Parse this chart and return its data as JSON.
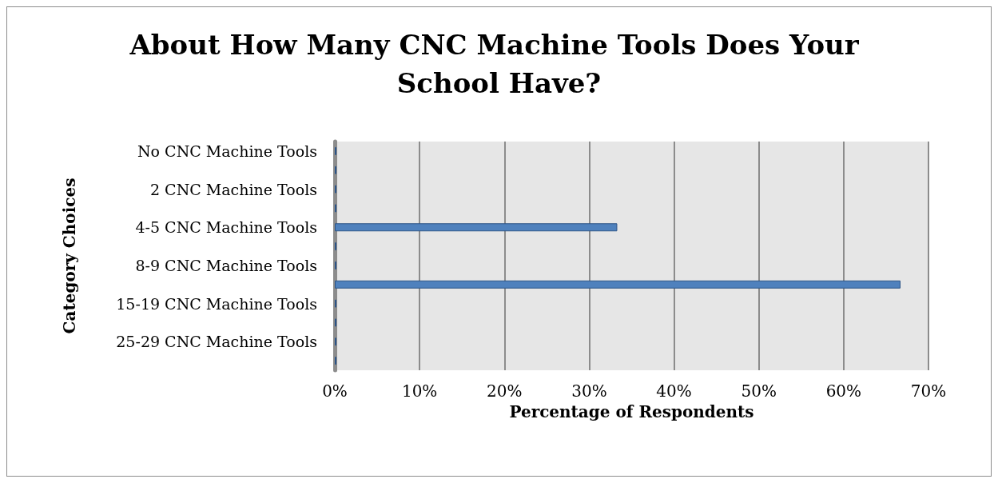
{
  "chart_data": {
    "type": "bar",
    "orientation": "horizontal",
    "title": "About How Many CNC Machine Tools Does Your School Have?",
    "xlabel": "Percentage of Respondents",
    "ylabel": "Category Choices",
    "categories": [
      "No CNC Machine Tools",
      null,
      "2 CNC Machine Tools",
      null,
      "4-5 CNC Machine Tools",
      null,
      "8-9 CNC Machine Tools",
      null,
      "15-19 CNC Machine Tools",
      null,
      "25-29 CNC Machine Tools",
      null
    ],
    "values": [
      0,
      0,
      0,
      0,
      33.3,
      0,
      0,
      66.7,
      0,
      0,
      0,
      0
    ],
    "color": "#4f81bd",
    "xlim": [
      0,
      70
    ],
    "xticks": [
      {
        "value": 0,
        "label": "0%"
      },
      {
        "value": 10,
        "label": "10%"
      },
      {
        "value": 20,
        "label": "20%"
      },
      {
        "value": 30,
        "label": "30%"
      },
      {
        "value": 40,
        "label": "40%"
      },
      {
        "value": 50,
        "label": "50%"
      },
      {
        "value": 60,
        "label": "60%"
      },
      {
        "value": 70,
        "label": "70%"
      }
    ],
    "grid": "x"
  }
}
